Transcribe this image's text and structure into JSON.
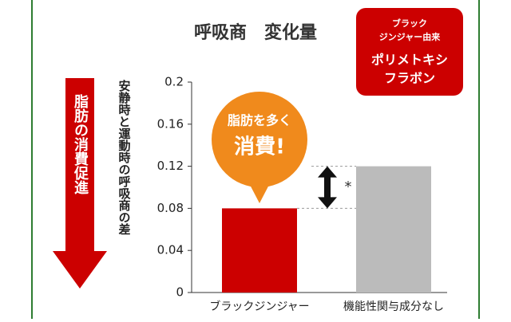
{
  "chart_data": {
    "type": "bar",
    "title": "呼吸商　変化量",
    "badge": [
      "ブラック",
      "ジンジャー由来",
      "ポリメトキシ",
      "フラボン"
    ],
    "arrow_label": "脂肪の消費促進",
    "y_label": "安静時と運動時の呼吸商の差",
    "bubble": [
      "脂肪を多く",
      "消費!"
    ],
    "significance": "*",
    "categories": [
      "ブラックジンジャー",
      "機能性関与成分なし"
    ],
    "values": [
      0.08,
      0.12
    ],
    "colors": [
      "#cc0000",
      "#bbbbbb"
    ],
    "ylim": [
      0,
      0.2
    ],
    "yticks": [
      0,
      0.04,
      0.08,
      0.12,
      0.16,
      0.2
    ]
  }
}
